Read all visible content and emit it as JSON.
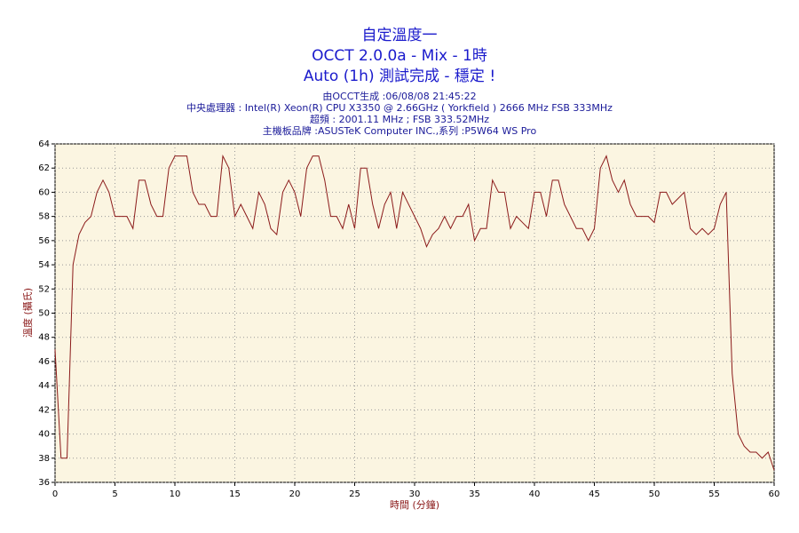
{
  "chart_data": {
    "type": "line",
    "title": "自定溫度一",
    "subtitle": [
      "OCCT 2.0.0a - Mix - 1時",
      "Auto (1h) 測試完成 - 穩定 !"
    ],
    "info": [
      "由OCCT生成 :06/08/08 21:45:22",
      "中央處理器 : Intel(R) Xeon(R) CPU X3350 @ 2.66GHz ( Yorkfield ) 2666 MHz FSB 333MHz",
      "超頻 : 2001.11 MHz ; FSB 333.52MHz",
      "主機板品牌 :ASUSTeK Computer INC.,系列 :P5W64 WS Pro"
    ],
    "x_label": "時間 (分鐘)",
    "y_label": "溫度 (攝氏)",
    "x": [
      0,
      0.5,
      1,
      1.5,
      2,
      2.5,
      3,
      3.5,
      4,
      4.5,
      5,
      5.5,
      6,
      6.5,
      7,
      7.5,
      8,
      8.5,
      9,
      9.5,
      10,
      10.5,
      11,
      11.5,
      12,
      12.5,
      13,
      13.5,
      14,
      14.5,
      15,
      15.5,
      16,
      16.5,
      17,
      17.5,
      18,
      18.5,
      19,
      19.5,
      20,
      20.5,
      21,
      21.5,
      22,
      22.5,
      23,
      23.5,
      24,
      24.5,
      25,
      25.5,
      26,
      26.5,
      27,
      27.5,
      28,
      28.5,
      29,
      29.5,
      30,
      30.5,
      31,
      31.5,
      32,
      32.5,
      33,
      33.5,
      34,
      34.5,
      35,
      35.5,
      36,
      36.5,
      37,
      37.5,
      38,
      38.5,
      39,
      39.5,
      40,
      40.5,
      41,
      41.5,
      42,
      42.5,
      43,
      43.5,
      44,
      44.5,
      45,
      45.5,
      46,
      46.5,
      47,
      47.5,
      48,
      48.5,
      49,
      49.5,
      50,
      50.5,
      51,
      51.5,
      52,
      52.5,
      53,
      53.5,
      54,
      54.5,
      55,
      55.5,
      56,
      56.5,
      57,
      57.5,
      58,
      58.5,
      59,
      59.5,
      60
    ],
    "series": [
      {
        "name": "溫度",
        "color": "#8b1a1a",
        "values": [
          47,
          38,
          38,
          54,
          56.5,
          57.5,
          58,
          60,
          61,
          60,
          58,
          58,
          58,
          57,
          61,
          61,
          59,
          58,
          58,
          62,
          63,
          63,
          63,
          60,
          59,
          59,
          58,
          58,
          63,
          62,
          58,
          59,
          58,
          57,
          60,
          59,
          57,
          56.5,
          60,
          61,
          60,
          58,
          62,
          63,
          63,
          61,
          58,
          58,
          57,
          59,
          57,
          62,
          62,
          59,
          57,
          59,
          60,
          57,
          60,
          59,
          58,
          57,
          55.5,
          56.5,
          57,
          58,
          57,
          58,
          58,
          59,
          56,
          57,
          57,
          61,
          60,
          60,
          57,
          58,
          57.5,
          57,
          60,
          60,
          58,
          61,
          61,
          59,
          58,
          57,
          57,
          56,
          57,
          62,
          63,
          61,
          60,
          61,
          59,
          58,
          58,
          58,
          57.5,
          60,
          60,
          59,
          59.5,
          60,
          57,
          56.5,
          57,
          56.5,
          57,
          59,
          60,
          45,
          40,
          39,
          38.5,
          38.5,
          38,
          38.5,
          37
        ]
      }
    ],
    "xlim": [
      0,
      60
    ],
    "ylim": [
      36,
      64
    ],
    "xticks": [
      0,
      5,
      10,
      15,
      20,
      25,
      30,
      35,
      40,
      45,
      50,
      55,
      60
    ],
    "yticks": [
      36,
      38,
      40,
      42,
      44,
      46,
      48,
      50,
      52,
      54,
      56,
      58,
      60,
      62,
      64
    ],
    "grid": true,
    "background": "#fbf5e1"
  }
}
